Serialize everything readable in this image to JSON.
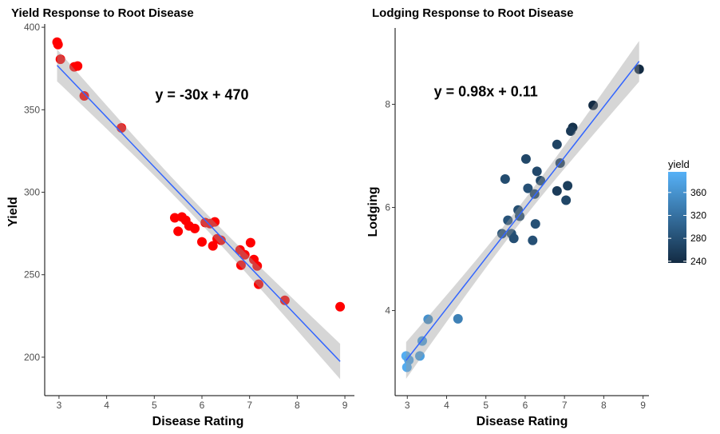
{
  "chart_data": [
    {
      "type": "scatter",
      "title": "Yield Response to Root Disease",
      "xlabel": "Disease Rating",
      "ylabel": "Yield",
      "xlim": [
        2.7,
        9.2
      ],
      "ylim": [
        176.7,
        402
      ],
      "xticks": [
        3,
        4,
        5,
        6,
        7,
        8,
        9
      ],
      "yticks": [
        200,
        250,
        300,
        350,
        400
      ],
      "grid": false,
      "point_color": "#FF0000",
      "annotation": {
        "text": "y = -30x + 470",
        "x": 6.0,
        "y": 359
      },
      "smooth": {
        "method": "lm",
        "line_color": "#3366FF",
        "band_color": "#999999"
      },
      "points": [
        [
          2.96,
          391
        ],
        [
          2.98,
          389.5
        ],
        [
          3.03,
          380.6
        ],
        [
          3.32,
          376
        ],
        [
          3.39,
          376.5
        ],
        [
          3.53,
          358.4
        ],
        [
          4.31,
          339
        ],
        [
          5.43,
          284.5
        ],
        [
          5.5,
          276.3
        ],
        [
          5.58,
          285
        ],
        [
          5.66,
          283
        ],
        [
          5.73,
          279.6
        ],
        [
          5.85,
          278
        ],
        [
          6.0,
          269.9
        ],
        [
          6.07,
          281.6
        ],
        [
          6.17,
          281
        ],
        [
          6.27,
          282
        ],
        [
          6.23,
          267.5
        ],
        [
          6.32,
          271.8
        ],
        [
          6.4,
          270.9
        ],
        [
          6.8,
          265
        ],
        [
          6.82,
          255.8
        ],
        [
          6.9,
          262.1
        ],
        [
          7.02,
          269.4
        ],
        [
          7.09,
          259.2
        ],
        [
          7.16,
          255.3
        ],
        [
          7.19,
          244.2
        ],
        [
          7.74,
          234.5
        ],
        [
          8.9,
          230.6
        ]
      ]
    },
    {
      "type": "scatter",
      "title": "Lodging Response to Root Disease",
      "xlabel": "Disease Rating",
      "ylabel": "Lodging",
      "xlim": [
        2.69,
        9.15
      ],
      "ylim": [
        2.35,
        9.48
      ],
      "xticks": [
        3,
        4,
        5,
        6,
        7,
        8,
        9
      ],
      "yticks": [
        4,
        6,
        8
      ],
      "grid": false,
      "annotation": {
        "text": "y = 0.98x + 0.11",
        "x": 5.0,
        "y": 8.25
      },
      "smooth": {
        "method": "lm",
        "line_color": "#3366FF",
        "band_color": "#999999"
      },
      "color_scale": {
        "name": "yield",
        "low": "#132B43",
        "high": "#56B1F7",
        "limits": [
          237,
          396
        ],
        "ticks": [
          240,
          280,
          320,
          360
        ]
      },
      "points": [
        [
          8.9,
          8.68,
          230
        ],
        [
          7.73,
          7.98,
          235
        ],
        [
          7.21,
          7.55,
          245
        ],
        [
          7.16,
          7.48,
          255
        ],
        [
          6.81,
          7.22,
          265
        ],
        [
          6.02,
          6.94,
          270
        ],
        [
          6.89,
          6.86,
          262
        ],
        [
          6.3,
          6.7,
          272
        ],
        [
          5.49,
          6.55,
          276
        ],
        [
          6.39,
          6.52,
          271
        ],
        [
          7.08,
          6.42,
          259
        ],
        [
          6.07,
          6.37,
          281
        ],
        [
          6.81,
          6.32,
          256
        ],
        [
          6.24,
          6.26,
          268
        ],
        [
          7.04,
          6.14,
          269
        ],
        [
          5.82,
          5.95,
          278
        ],
        [
          5.86,
          5.83,
          278
        ],
        [
          5.56,
          5.75,
          285
        ],
        [
          6.26,
          5.68,
          282
        ],
        [
          5.41,
          5.49,
          284
        ],
        [
          5.65,
          5.49,
          283
        ],
        [
          5.71,
          5.4,
          280
        ],
        [
          6.19,
          5.36,
          281
        ],
        [
          4.29,
          3.84,
          339
        ],
        [
          3.53,
          3.83,
          358
        ],
        [
          3.38,
          3.41,
          376
        ],
        [
          3.32,
          3.12,
          376
        ],
        [
          2.97,
          3.12,
          391
        ],
        [
          3.04,
          3.04,
          381
        ],
        [
          2.99,
          2.9,
          389
        ]
      ]
    }
  ]
}
